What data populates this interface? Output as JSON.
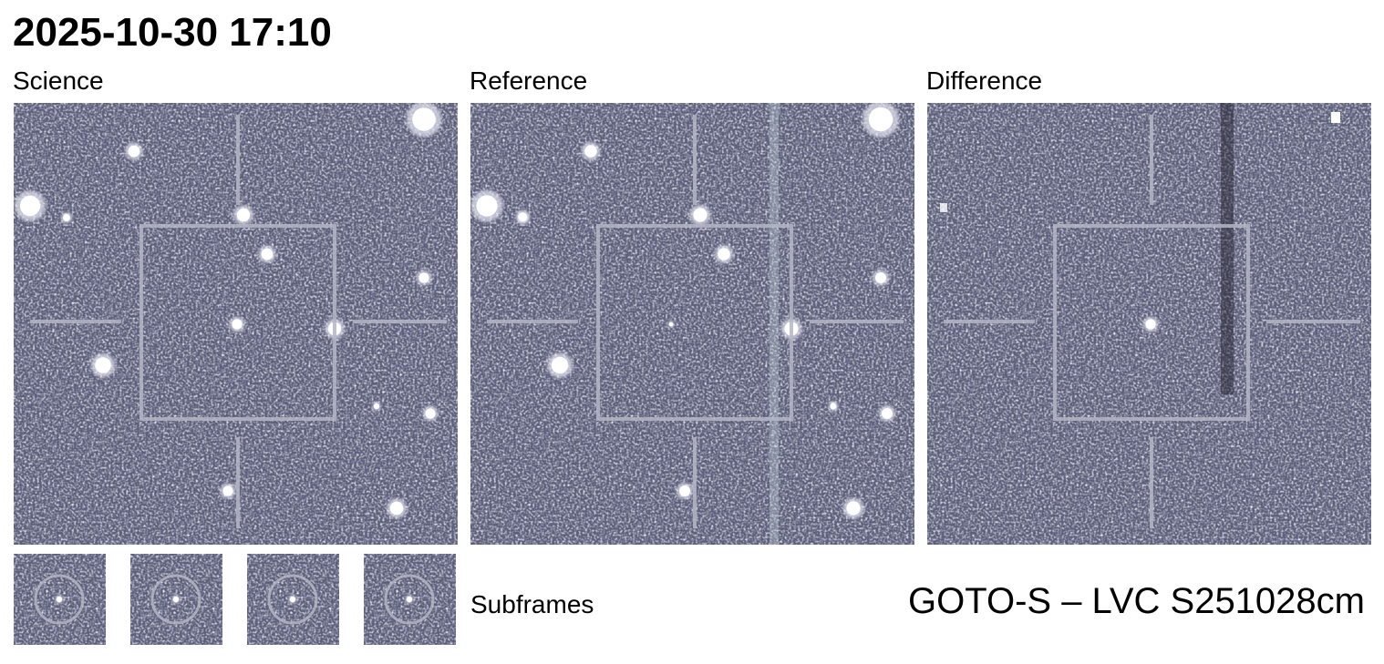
{
  "header": {
    "title": "2025-10-30 17:10"
  },
  "panels": [
    {
      "label": "Science"
    },
    {
      "label": "Reference"
    },
    {
      "label": "Difference"
    }
  ],
  "subframes": {
    "label": "Subframes"
  },
  "footer": {
    "label": "GOTO-S – LVC S251028cm"
  }
}
